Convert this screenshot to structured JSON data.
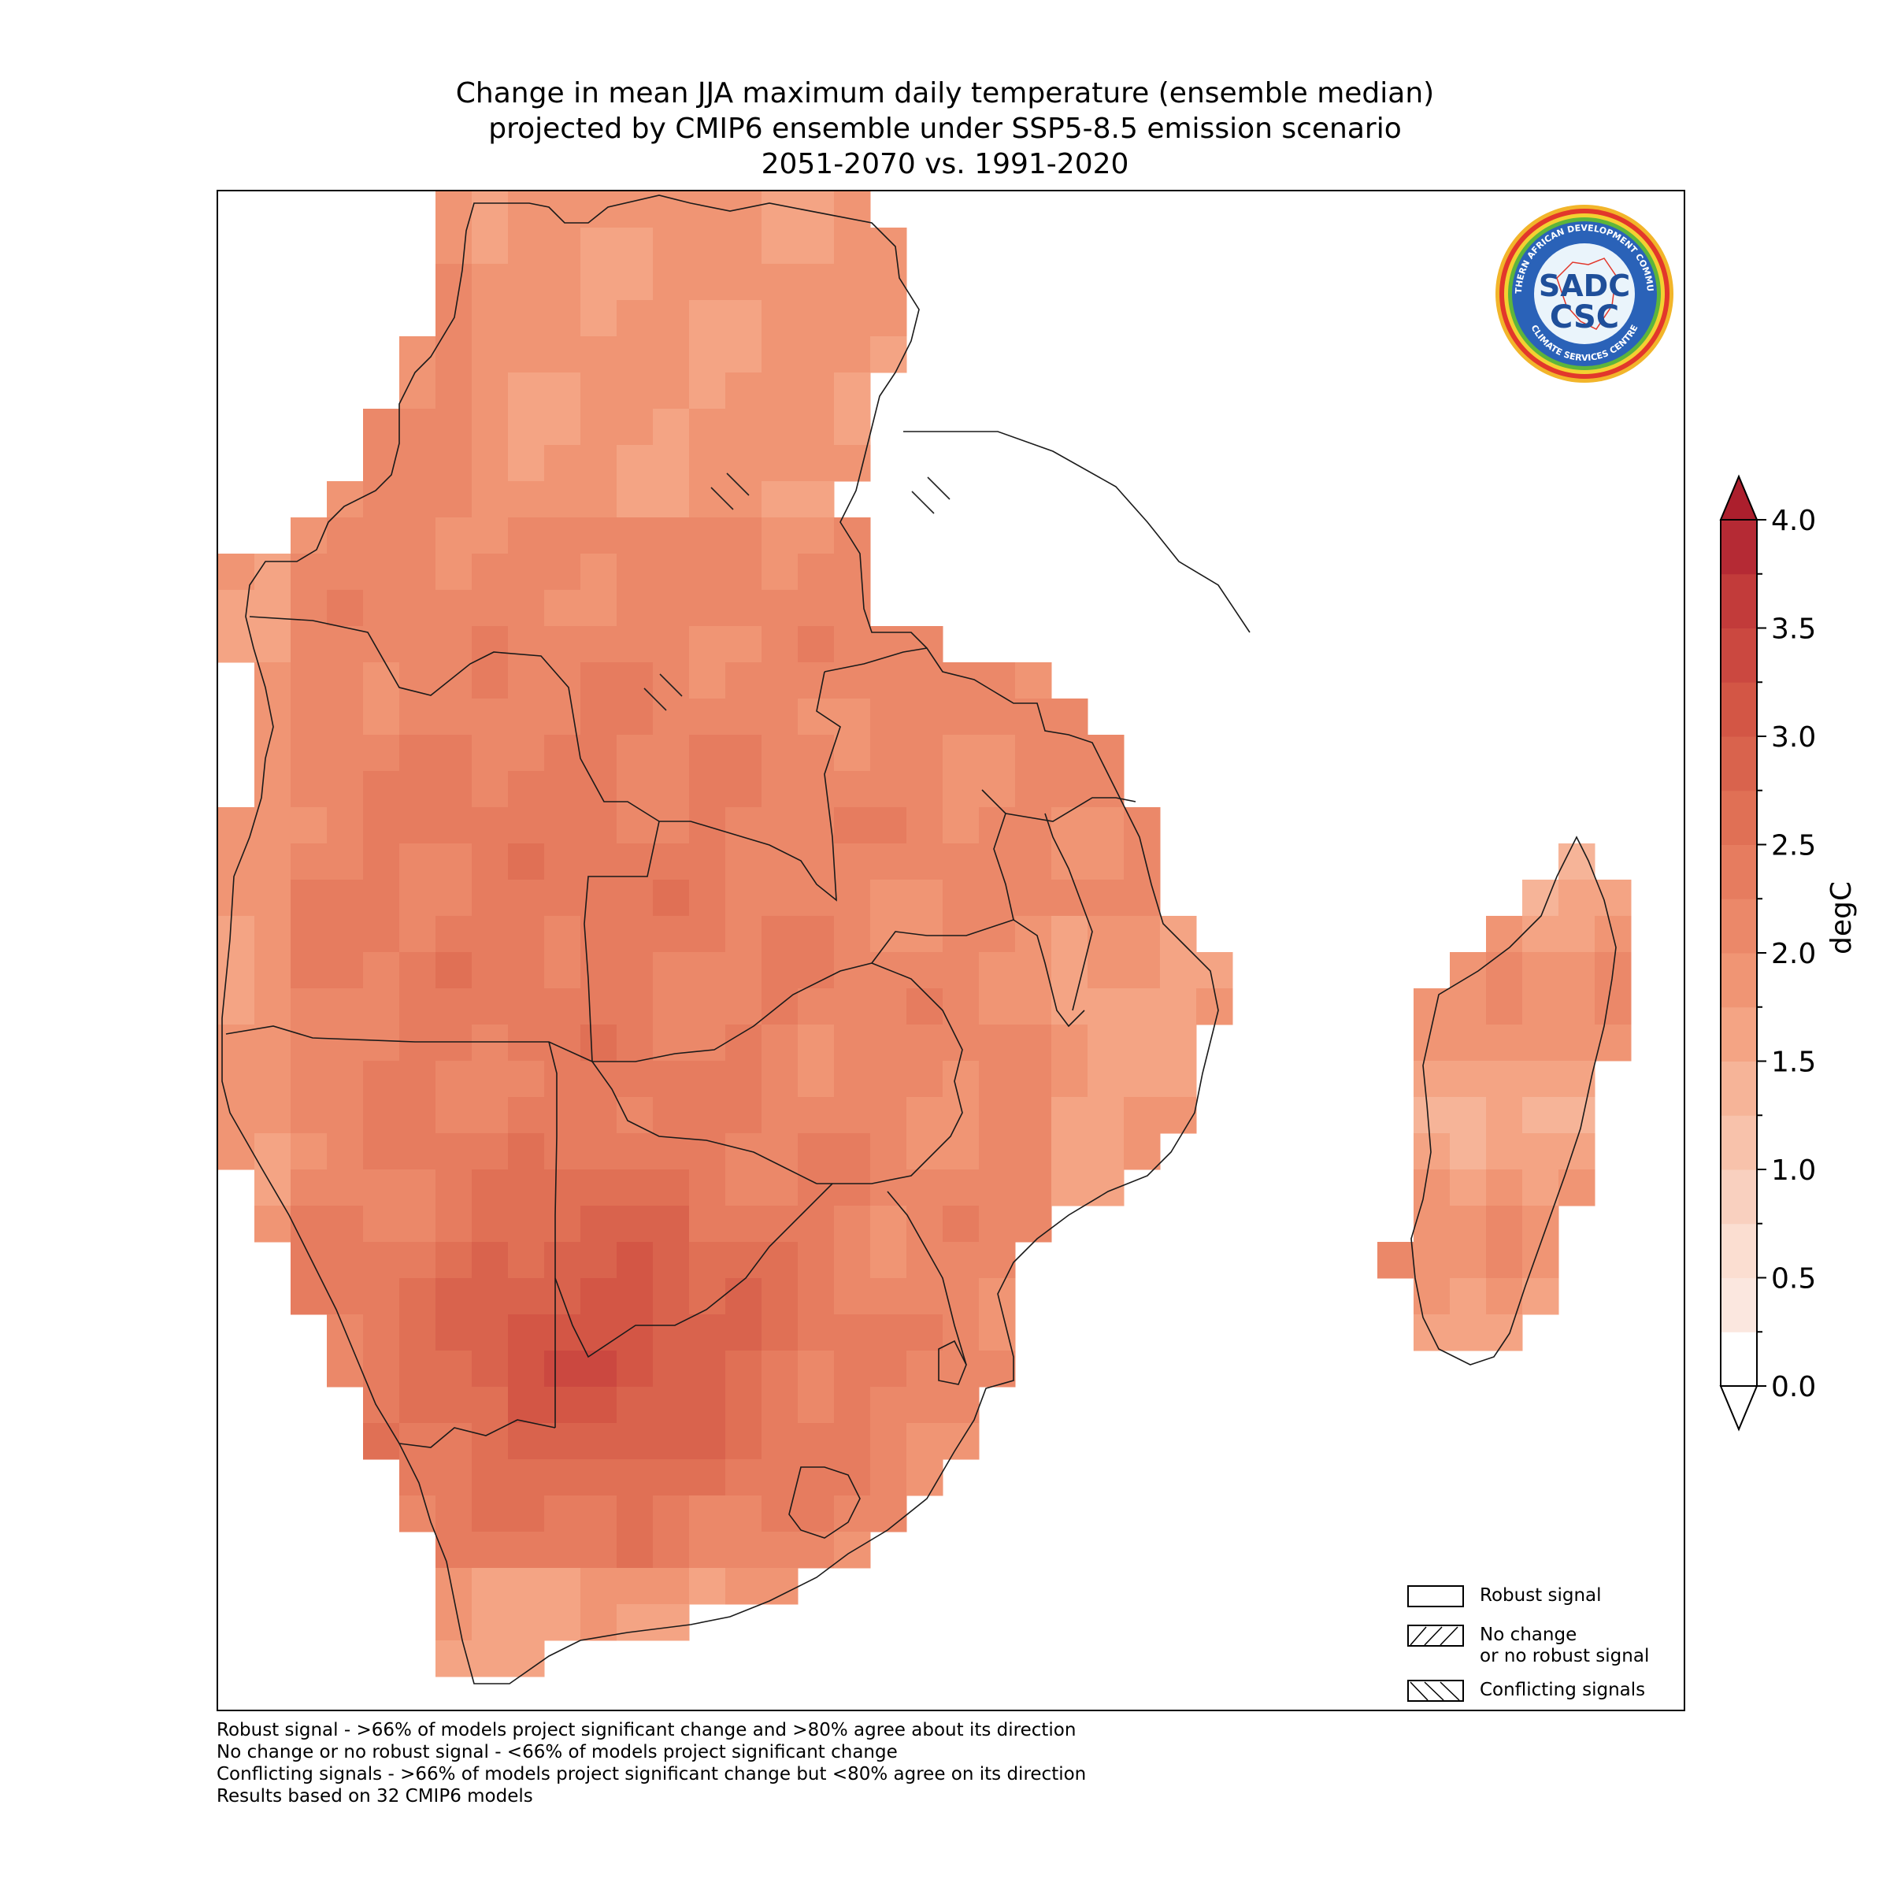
{
  "title": {
    "line1": "Change in mean JJA maximum daily temperature (ensemble median)",
    "line2": "projected by CMIP6 ensemble under SSP5-8.5 emission scenario",
    "line3": "2051-2070 vs. 1991-2020"
  },
  "logo": {
    "text_main": "SADC",
    "text_sub": "CSC",
    "ring_top": "SOUTHERN AFRICAN DEVELOPMENT COMMUNITY",
    "ring_bottom": "CLIMATE SERVICES CENTRE"
  },
  "colorbar": {
    "unit": "degC",
    "ticks": [
      "0.0",
      "0.5",
      "1.0",
      "1.5",
      "2.0",
      "2.5",
      "3.0",
      "3.5",
      "4.0"
    ],
    "min": 0.0,
    "max": 4.0,
    "step": 0.25,
    "colors": [
      "#ffffff",
      "#fbe7df",
      "#fbded1",
      "#f9d0bf",
      "#f8c2ab",
      "#f6b498",
      "#f4a484",
      "#f09574",
      "#eb8869",
      "#e67c5f",
      "#e07055",
      "#d9634d",
      "#d35645",
      "#cb4840",
      "#c23b3a",
      "#b52a34"
    ],
    "over_color": "#ac1f2d",
    "under_color": "#ffffff"
  },
  "legend": {
    "robust": "Robust signal",
    "no_change_1": "No change",
    "no_change_2": "or no robust signal",
    "conflicting": "Conflicting signals"
  },
  "footnotes": {
    "line1": "Robust signal - >66% of models project significant change and >80% agree about its direction",
    "line2": "No change or no robust signal - <66% of models project significant change",
    "line3": "Conflicting signals - >66% of models project significant change but <80% agree on its direction",
    "line4": "Results based on 32 CMIP6 models"
  }
}
